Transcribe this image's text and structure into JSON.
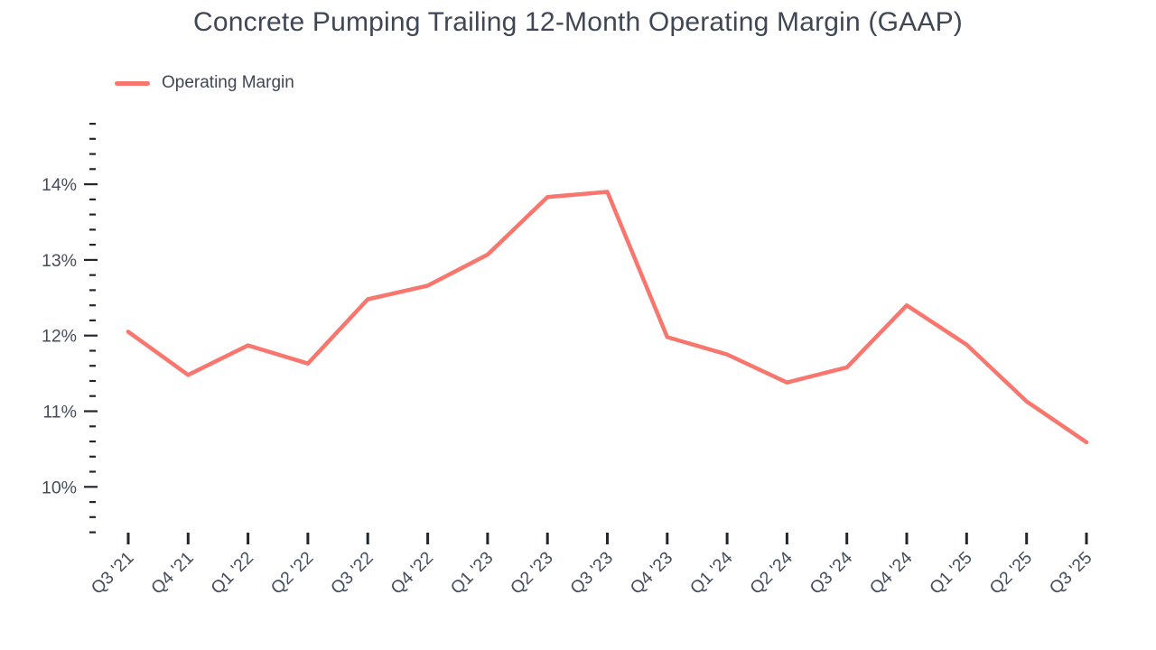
{
  "colors": {
    "line": "#F8766D",
    "text": "#3F4654",
    "axis_label": "#454D5C",
    "tick": "#23272D",
    "background": "#FFFFFF"
  },
  "legend": {
    "label": "Operating Margin",
    "swatch_color": "#F8766D"
  },
  "chart_data": {
    "type": "line",
    "title": "Concrete Pumping Trailing 12-Month Operating Margin (GAAP)",
    "xlabel": "",
    "ylabel": "",
    "unit": "%",
    "grid": false,
    "legend_position": "top-left",
    "categories": [
      "Q3 '21",
      "Q4 '21",
      "Q1 '22",
      "Q2 '22",
      "Q3 '22",
      "Q4 '22",
      "Q1 '23",
      "Q2 '23",
      "Q3 '23",
      "Q4 '23",
      "Q1 '24",
      "Q2 '24",
      "Q3 '24",
      "Q4 '24",
      "Q1 '25",
      "Q2 '25",
      "Q3 '25"
    ],
    "series": [
      {
        "name": "Operating Margin",
        "color": "#F8766D",
        "values": [
          12.05,
          11.48,
          11.87,
          11.63,
          12.48,
          12.66,
          13.07,
          13.83,
          13.9,
          11.98,
          11.75,
          11.38,
          11.58,
          12.4,
          11.88,
          11.13,
          10.59
        ]
      }
    ],
    "y_axis": {
      "major_ticks": [
        10,
        11,
        12,
        13,
        14
      ],
      "major_tick_labels": [
        "10%",
        "11%",
        "12%",
        "13%",
        "14%"
      ],
      "minor_step": 0.2,
      "tick_min": 9.4,
      "tick_max": 14.8,
      "unit": "%"
    },
    "ylim": [
      9.2,
      15.0
    ]
  }
}
